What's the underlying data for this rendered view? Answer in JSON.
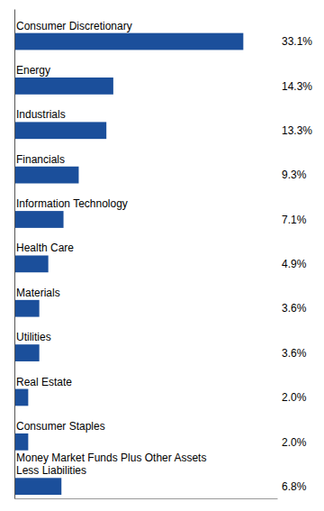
{
  "chart_data": {
    "type": "bar",
    "orientation": "horizontal",
    "categories": [
      "Consumer Discretionary",
      "Energy",
      "Industrials",
      "Financials",
      "Information Technology",
      "Health Care",
      "Materials",
      "Utilities",
      "Real Estate",
      "Consumer Staples",
      "Money Market Funds Plus Other Assets\nLess Liabilities"
    ],
    "values": [
      33.1,
      14.3,
      13.3,
      9.3,
      7.1,
      4.9,
      3.6,
      3.6,
      2.0,
      2.0,
      6.8
    ],
    "value_labels": [
      "33.1%",
      "14.3%",
      "13.3%",
      "9.3%",
      "7.1%",
      "4.9%",
      "3.6%",
      "3.6%",
      "2.0%",
      "2.0%",
      "6.8%"
    ],
    "data_labels": true,
    "color": "#1B4F9B",
    "xlim": [
      0,
      38
    ],
    "xticks": [],
    "tick_labels": false,
    "grid": false
  }
}
